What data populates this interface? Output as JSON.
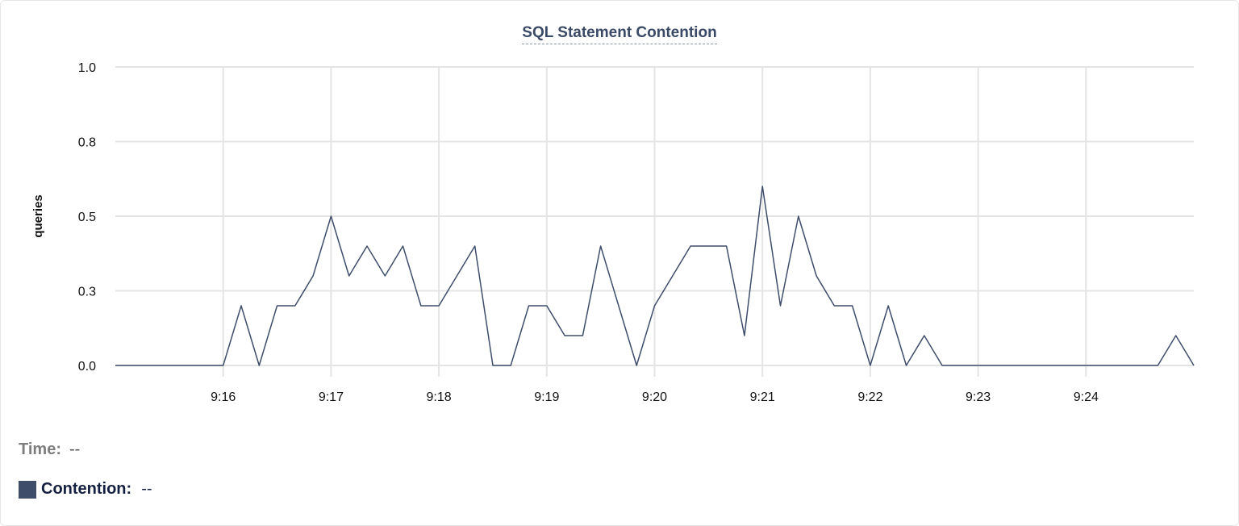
{
  "chart_data": {
    "type": "line",
    "title": "SQL Statement Contention",
    "xlabel": "",
    "ylabel": "queries",
    "ylim": [
      0,
      1
    ],
    "xlim": [
      "9:15:00",
      "9:25:00"
    ],
    "grid": true,
    "y_ticks": [
      {
        "value": 0,
        "label": "0.0"
      },
      {
        "value": 0.25,
        "label": "0.3"
      },
      {
        "value": 0.5,
        "label": "0.5"
      },
      {
        "value": 0.75,
        "label": "0.8"
      },
      {
        "value": 1,
        "label": "1.0"
      }
    ],
    "x_ticks": [
      "9:16",
      "9:17",
      "9:18",
      "9:19",
      "9:20",
      "9:21",
      "9:22",
      "9:23",
      "9:24"
    ],
    "x_sample_interval_seconds": 10,
    "series": [
      {
        "color": "#3e4d6a",
        "x_start": "9:15:00",
        "values": [
          0,
          0,
          0,
          0,
          0,
          0,
          0,
          0.2,
          0,
          0.2,
          0.2,
          0.3,
          0.5,
          0.3,
          0.4,
          0.3,
          0.4,
          0.2,
          0.2,
          0.3,
          0.4,
          0,
          0,
          0.2,
          0.2,
          0.1,
          0.1,
          0.4,
          0.2,
          0,
          0.2,
          0.3,
          0.4,
          0.4,
          0.4,
          0.1,
          0.6,
          0.2,
          0.5,
          0.3,
          0.2,
          0.2,
          0,
          0.2,
          0,
          0.1,
          0,
          0,
          0,
          0,
          0,
          0,
          0,
          0,
          0,
          0,
          0,
          0,
          0,
          0.1,
          0
        ]
      }
    ]
  },
  "legend": {
    "time_label": "Time:",
    "time_value": "--",
    "series_label": "Contention:",
    "series_value": "--",
    "series_color": "#3e4d6a"
  }
}
